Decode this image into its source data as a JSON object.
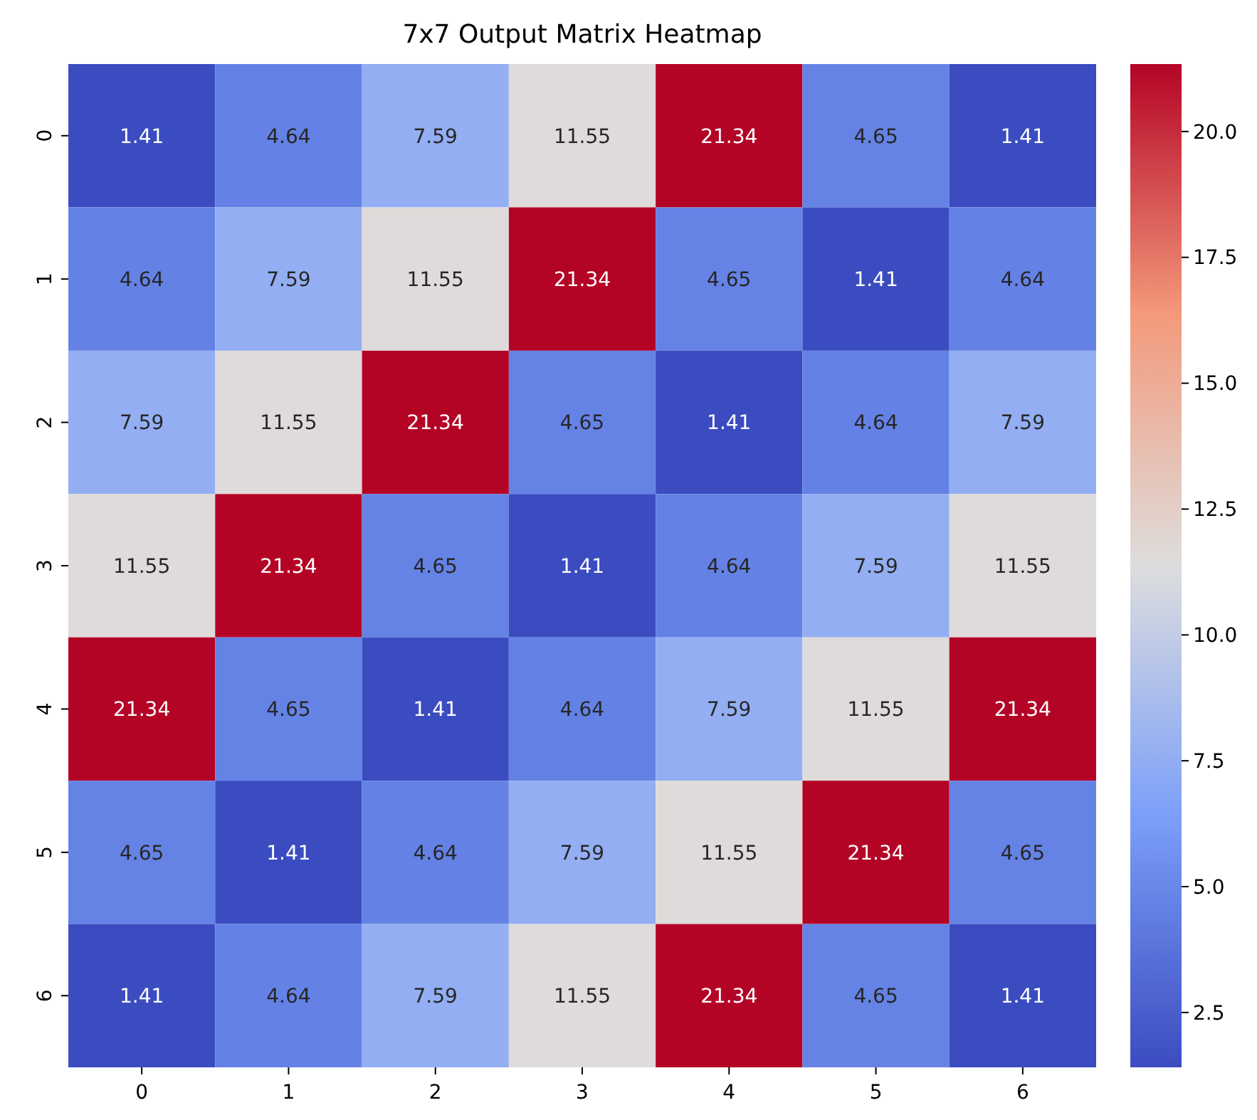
{
  "chart_data": {
    "type": "heatmap",
    "title": "7x7 Output Matrix Heatmap",
    "categories": [
      "0",
      "1",
      "2",
      "3",
      "4",
      "5",
      "6"
    ],
    "y_categories": [
      "0",
      "1",
      "2",
      "3",
      "4",
      "5",
      "6"
    ],
    "cells": [
      [
        1.41,
        4.64,
        7.59,
        11.55,
        21.34,
        4.65,
        1.41
      ],
      [
        4.64,
        7.59,
        11.55,
        21.34,
        4.65,
        1.41,
        4.64
      ],
      [
        7.59,
        11.55,
        21.34,
        4.65,
        1.41,
        4.64,
        7.59
      ],
      [
        11.55,
        21.34,
        4.65,
        1.41,
        4.64,
        7.59,
        11.55
      ],
      [
        21.34,
        4.65,
        1.41,
        4.64,
        7.59,
        11.55,
        21.34
      ],
      [
        4.65,
        1.41,
        4.64,
        7.59,
        11.55,
        21.34,
        4.65
      ],
      [
        1.41,
        4.64,
        7.59,
        11.55,
        21.34,
        4.65,
        1.41
      ]
    ],
    "data_labels": true,
    "clim": [
      1.41,
      21.34
    ],
    "cticks": [
      {
        "value": 2.5,
        "label": "2.5"
      },
      {
        "value": 5,
        "label": "5.0"
      },
      {
        "value": 7.5,
        "label": "7.5"
      },
      {
        "value": 10,
        "label": "10.0"
      },
      {
        "value": 12.5,
        "label": "12.5"
      },
      {
        "value": 15,
        "label": "15.0"
      },
      {
        "value": 17.5,
        "label": "17.5"
      },
      {
        "value": 20,
        "label": "20.0"
      }
    ]
  }
}
